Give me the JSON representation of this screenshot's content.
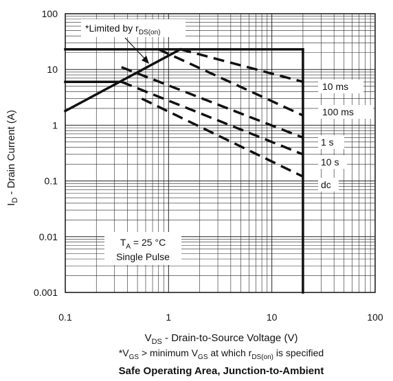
{
  "chart_data": {
    "type": "line",
    "x_scale": "log",
    "y_scale": "log",
    "xlim": [
      0.1,
      100
    ],
    "ylim": [
      0.001,
      100
    ],
    "grid": true,
    "x_ticks": [
      "0.1",
      "1",
      "10",
      "100"
    ],
    "y_ticks": [
      "0.001",
      "0.01",
      "0.1",
      "1",
      "10",
      "100"
    ],
    "ylabel": {
      "main": "I",
      "sub": "D",
      "rest": " - Drain Current (A)"
    },
    "xlabel": {
      "main": "V",
      "sub": "DS",
      "rest": " - Drain-to-Source Voltage (V)"
    },
    "footnote": {
      "p1": "*V",
      "s1": "GS",
      "p2": " > minimum V",
      "s2": "GS",
      "p3": " at which r",
      "s3": "DS(on)",
      "p4": " is specified"
    },
    "title": "Safe Operating Area, Junction-to-Ambient",
    "limit_annotation": {
      "main": "*Limited by r",
      "sub": "DS(on)"
    },
    "conditions": {
      "line1_main": "T",
      "line1_sub": "A",
      "line1_rest": " = 25 °C",
      "line2": "Single Pulse"
    },
    "solid_lines": [
      {
        "role": "rds-on-limit",
        "points": [
          [
            0.1,
            1.8
          ],
          [
            1.3,
            23
          ]
        ]
      },
      {
        "role": "current-limit",
        "points": [
          [
            0.1,
            23
          ],
          [
            20,
            23
          ]
        ]
      },
      {
        "role": "current-limit-low",
        "points": [
          [
            0.1,
            6
          ],
          [
            0.35,
            6
          ]
        ]
      },
      {
        "role": "voltage-limit",
        "points": [
          [
            20,
            23
          ],
          [
            20,
            0.001
          ]
        ]
      }
    ],
    "series": [
      {
        "name": "10 ms",
        "points": [
          [
            1.3,
            23
          ],
          [
            20,
            6
          ]
        ]
      },
      {
        "name": "100 ms",
        "points": [
          [
            0.8,
            23
          ],
          [
            20,
            1.5
          ]
        ]
      },
      {
        "name": "1 s",
        "points": [
          [
            0.35,
            11
          ],
          [
            20,
            0.6
          ]
        ]
      },
      {
        "name": "10 s",
        "points": [
          [
            0.35,
            6
          ],
          [
            20,
            0.3
          ]
        ]
      },
      {
        "name": "dc",
        "points": [
          [
            0.55,
            3
          ],
          [
            20,
            0.12
          ]
        ]
      }
    ]
  }
}
